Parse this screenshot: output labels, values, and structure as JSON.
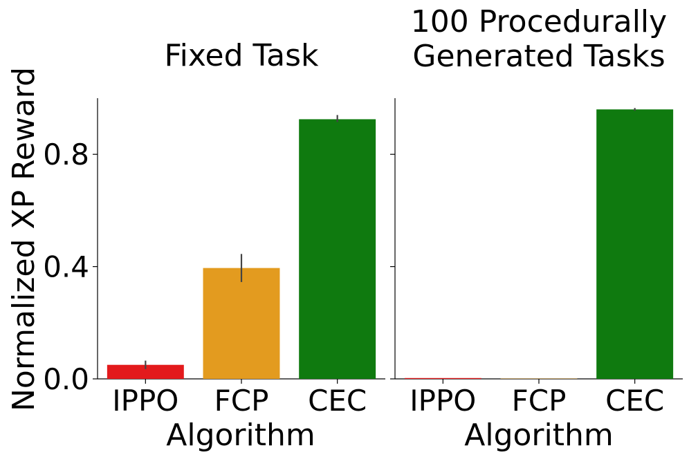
{
  "chart_data": [
    {
      "type": "bar",
      "title": [
        "Fixed Task"
      ],
      "xlabel": "Algorithm",
      "ylabel": "Normalized XP Reward",
      "ylim": [
        0,
        1.0
      ],
      "yticks": [
        "0.0",
        "0.4",
        "0.8"
      ],
      "yticks_values": [
        0.0,
        0.4,
        0.8
      ],
      "categories": [
        "IPPO",
        "FCP",
        "CEC"
      ],
      "values": [
        0.05,
        0.395,
        0.925
      ],
      "error_low": [
        0.035,
        0.345,
        0.915
      ],
      "error_high": [
        0.065,
        0.445,
        0.94
      ],
      "colors": [
        "#e31a1c",
        "#e39b1f",
        "#0f7a0f"
      ],
      "grid": false
    },
    {
      "type": "bar",
      "title": [
        "100 Procedurally",
        "Generated Tasks"
      ],
      "xlabel": "Algorithm",
      "ylim": [
        0,
        1.0
      ],
      "categories": [
        "IPPO",
        "FCP",
        "CEC"
      ],
      "values": [
        0.003,
        0.001,
        0.96
      ],
      "error_low": [
        0.002,
        0.0,
        0.955
      ],
      "error_high": [
        0.004,
        0.002,
        0.965
      ],
      "colors": [
        "#e31a1c",
        "#e39b1f",
        "#0f7a0f"
      ],
      "grid": false
    }
  ]
}
